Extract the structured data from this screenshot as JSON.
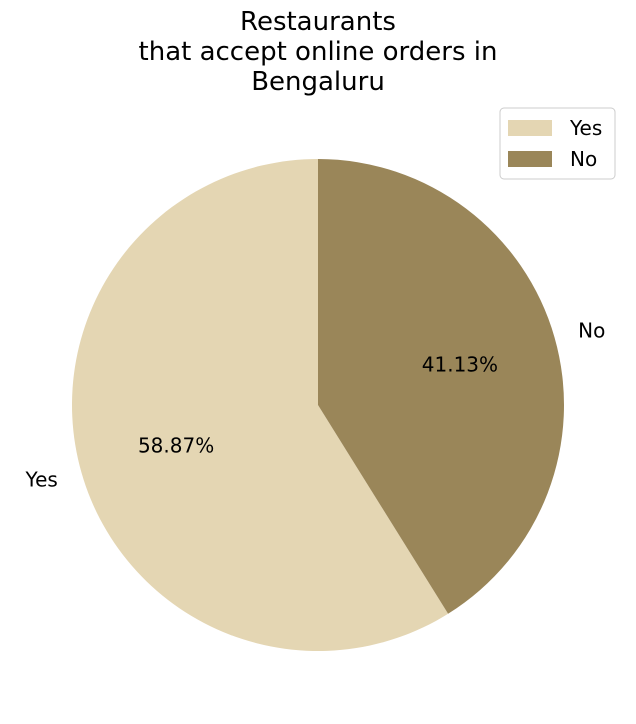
{
  "chart_data": {
    "type": "pie",
    "title": "Restaurants\nthat accept online orders in\nBengaluru",
    "categories": [
      "Yes",
      "No"
    ],
    "values": [
      58.87,
      41.13
    ],
    "percent_labels": [
      "58.87%",
      "41.13%"
    ],
    "colors": [
      "#e4d6b3",
      "#9a8659"
    ],
    "legend": {
      "placement": "top-right",
      "entries": [
        "Yes",
        "No"
      ]
    },
    "start_angle_deg": 90,
    "direction": "counterclockwise"
  }
}
